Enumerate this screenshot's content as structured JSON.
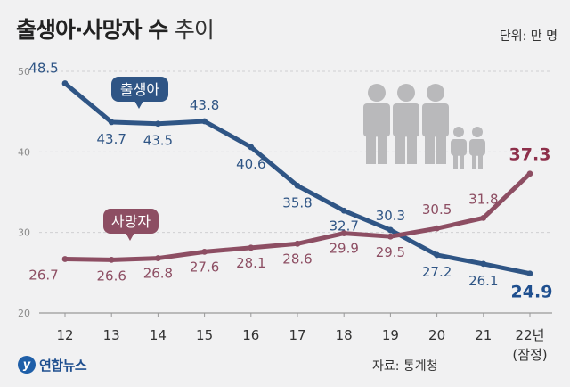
{
  "header": {
    "title_bold": "출생아·사망자 수",
    "title_light": "추이",
    "unit": "단위: 만 명"
  },
  "footer": {
    "source": "자료: 통계청",
    "logo_text": "연합뉴스",
    "logo_mark": "y"
  },
  "colors": {
    "births": "#2f5585",
    "deaths": "#8d4e63",
    "births_label_bold": "#1f4f8f",
    "deaths_label_bold": "#8d2f4a",
    "axis": "#999999",
    "grid": "#cfcfd2",
    "icon": "#b9b9bb"
  },
  "decor": {
    "people_icon": "family-people-icon"
  },
  "chart_data": {
    "type": "line",
    "categories": [
      "12",
      "13",
      "14",
      "15",
      "16",
      "17",
      "18",
      "19",
      "20",
      "21",
      "22년"
    ],
    "category_sublabel_last": "(잠정)",
    "ylim": [
      20,
      50
    ],
    "yticks": [
      "20",
      "30",
      "40",
      "50"
    ],
    "grid": true,
    "series": [
      {
        "name": "출생아",
        "color": "#2f5585",
        "values": [
          48.5,
          43.7,
          43.5,
          43.8,
          40.6,
          35.8,
          32.7,
          30.3,
          27.2,
          26.1,
          24.9
        ]
      },
      {
        "name": "사망자",
        "color": "#8d4e63",
        "values": [
          26.7,
          26.6,
          26.8,
          27.6,
          28.1,
          28.6,
          29.9,
          29.5,
          30.5,
          31.8,
          37.3
        ]
      }
    ],
    "births_labels": [
      "48.5",
      "43.7",
      "43.5",
      "43.8",
      "40.6",
      "35.8",
      "32.7",
      "30.3",
      "27.2",
      "26.1",
      "24.9"
    ],
    "deaths_labels": [
      "26.7",
      "26.6",
      "26.8",
      "27.6",
      "28.1",
      "28.6",
      "29.9",
      "29.5",
      "30.5",
      "31.8",
      "37.3"
    ]
  }
}
